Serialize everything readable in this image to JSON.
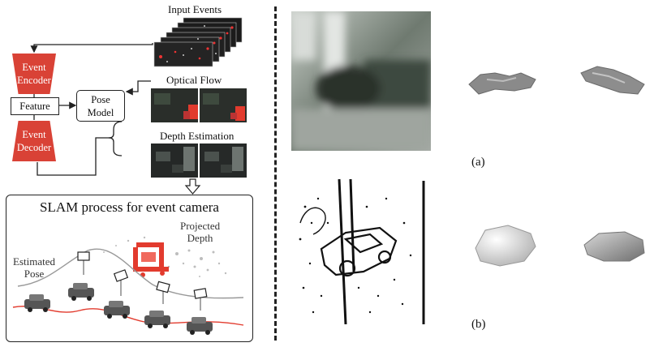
{
  "pipeline": {
    "encoder_label_line1": "Event",
    "encoder_label_line2": "Encoder",
    "feature_label": "Feature",
    "decoder_label_line1": "Event",
    "decoder_label_line2": "Decoder",
    "pose_model_line1": "Pose",
    "pose_model_line2": "Model",
    "input_events_label": "Input Events",
    "optical_flow_label": "Optical Flow",
    "depth_estimation_label": "Depth Estimation"
  },
  "slam": {
    "title": "SLAM process for event camera",
    "projected_depth_line1": "Projected",
    "projected_depth_line2": "Depth",
    "estimated_pose_line1": "Estimated",
    "estimated_pose_line2": "Pose"
  },
  "panels": {
    "caption_a": "(a)",
    "caption_b": "(b)"
  },
  "colors": {
    "accent_red": "#d94236",
    "line": "#222222"
  }
}
